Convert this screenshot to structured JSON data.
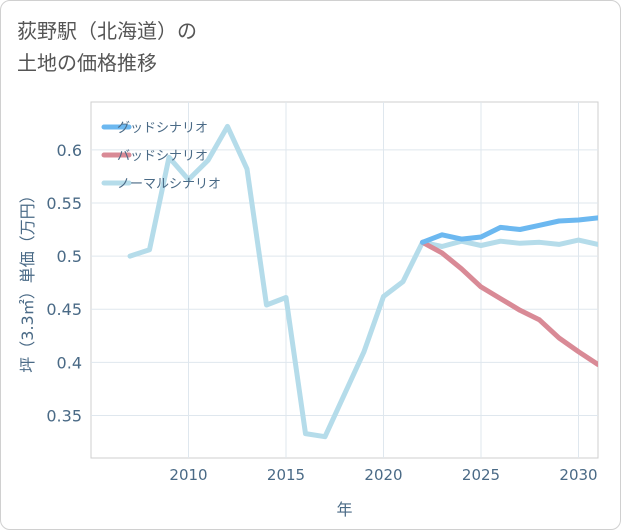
{
  "title_line1": "荻野駅（北海道）の",
  "title_line2": "土地の価格推移",
  "chart_data": {
    "type": "line",
    "title": "荻野駅（北海道）の土地の価格推移",
    "xlabel": "年",
    "ylabel": "坪（3.3㎡）単価（万円）",
    "xlim": [
      2005,
      2031
    ],
    "ylim": [
      0.31,
      0.645
    ],
    "x_ticks": [
      2010,
      2015,
      2020,
      2025,
      2030
    ],
    "y_ticks": [
      0.35,
      0.4,
      0.45,
      0.5,
      0.55,
      0.6
    ],
    "x_tick_labels": [
      "2010",
      "2015",
      "2020",
      "2025",
      "2030"
    ],
    "y_tick_labels": [
      "0.35",
      "0.4",
      "0.45",
      "0.5",
      "0.55",
      "0.6"
    ],
    "grid": true,
    "legend_position": "top-left",
    "series": [
      {
        "name": "グッドシナリオ",
        "color": "#6cb8f0",
        "x": [
          2022,
          2023,
          2024,
          2025,
          2026,
          2027,
          2028,
          2029,
          2030,
          2031
        ],
        "values": [
          0.513,
          0.52,
          0.516,
          0.518,
          0.527,
          0.525,
          0.529,
          0.533,
          0.534,
          0.536
        ]
      },
      {
        "name": "バッドシナリオ",
        "color": "#d98a96",
        "x": [
          2022,
          2023,
          2024,
          2025,
          2026,
          2027,
          2028,
          2029,
          2030,
          2031
        ],
        "values": [
          0.513,
          0.503,
          0.488,
          0.471,
          0.46,
          0.449,
          0.44,
          0.423,
          0.41,
          0.398
        ]
      },
      {
        "name": "ノーマルシナリオ",
        "color": "#b5dcea",
        "x": [
          2007,
          2008,
          2009,
          2010,
          2011,
          2012,
          2013,
          2014,
          2015,
          2016,
          2017,
          2018,
          2019,
          2020,
          2021,
          2022,
          2023,
          2024,
          2025,
          2026,
          2027,
          2028,
          2029,
          2030,
          2031
        ],
        "values": [
          0.5,
          0.506,
          0.593,
          0.572,
          0.59,
          0.622,
          0.582,
          0.454,
          0.461,
          0.333,
          0.33,
          0.37,
          0.41,
          0.462,
          0.476,
          0.513,
          0.509,
          0.514,
          0.51,
          0.514,
          0.512,
          0.513,
          0.511,
          0.515,
          0.511
        ]
      }
    ]
  }
}
